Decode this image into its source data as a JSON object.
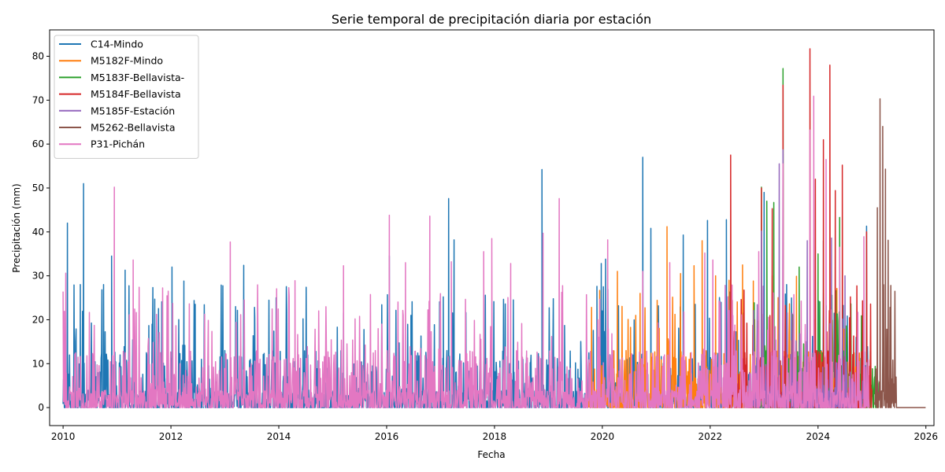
{
  "chart_data": {
    "type": "line",
    "title": "Serie temporal de precipitación diaria por estación",
    "xlabel": "Fecha",
    "ylabel": "Precipitación (mm)",
    "xlim": [
      2009.75,
      2026.15
    ],
    "ylim": [
      -4.1,
      86.0
    ],
    "xticks": [
      2010,
      2012,
      2014,
      2016,
      2018,
      2020,
      2022,
      2024,
      2026
    ],
    "yticks": [
      0,
      10,
      20,
      30,
      40,
      50,
      60,
      70,
      80
    ],
    "grid": false,
    "legend_position": "top-left",
    "series": [
      {
        "name": "C14-Mindo",
        "color": "#1f77b4",
        "range": [
          2010.0,
          2024.95
        ],
        "peaks": [
          [
            2010.08,
            42
          ],
          [
            2010.32,
            28
          ],
          [
            2010.38,
            51
          ],
          [
            2010.75,
            28
          ],
          [
            2010.9,
            34.5
          ],
          [
            2011.15,
            31.3
          ],
          [
            2011.7,
            24.7
          ],
          [
            2012.02,
            32
          ],
          [
            2012.24,
            28.8
          ],
          [
            2012.45,
            23.5
          ],
          [
            2013.2,
            23
          ],
          [
            2013.35,
            32.4
          ],
          [
            2013.55,
            22.8
          ],
          [
            2013.95,
            25
          ],
          [
            2014.45,
            20.2
          ],
          [
            2015.2,
            21.6
          ],
          [
            2016.05,
            34.5
          ],
          [
            2016.45,
            21
          ],
          [
            2017.05,
            25.2
          ],
          [
            2017.15,
            47.6
          ],
          [
            2017.25,
            38.2
          ],
          [
            2018.2,
            23.6
          ],
          [
            2018.35,
            24.5
          ],
          [
            2018.88,
            54.2
          ],
          [
            2019.3,
            18.7
          ],
          [
            2019.9,
            27.6
          ],
          [
            2019.98,
            32.8
          ],
          [
            2020.06,
            33.8
          ],
          [
            2020.3,
            23.2
          ],
          [
            2020.75,
            57
          ],
          [
            2020.9,
            40.8
          ],
          [
            2021.5,
            39.3
          ],
          [
            2021.95,
            42.6
          ],
          [
            2022.3,
            42.8
          ],
          [
            2023.0,
            49
          ],
          [
            2024.1,
            38
          ],
          [
            2024.3,
            21.5
          ],
          [
            2024.9,
            41.3
          ]
        ]
      },
      {
        "name": "M5182F-Mindo",
        "color": "#ff7f0e",
        "range": [
          2019.75,
          2024.9
        ],
        "peaks": [
          [
            2019.8,
            22.8
          ],
          [
            2019.95,
            26.7
          ],
          [
            2020.28,
            31
          ],
          [
            2020.7,
            26
          ],
          [
            2021.2,
            41.2
          ],
          [
            2021.45,
            30.5
          ],
          [
            2021.7,
            32.3
          ],
          [
            2021.85,
            38
          ],
          [
            2022.1,
            30
          ],
          [
            2022.35,
            29
          ],
          [
            2022.6,
            32.5
          ],
          [
            2022.8,
            28.8
          ],
          [
            2023.15,
            30
          ],
          [
            2023.6,
            29.9
          ],
          [
            2024.35,
            27.1
          ],
          [
            2024.6,
            17.4
          ]
        ]
      },
      {
        "name": "M5183F-Bellavista-",
        "color": "#2ca02c",
        "range": [
          2022.75,
          2025.12
        ],
        "peaks": [
          [
            2022.95,
            50.2
          ],
          [
            2023.05,
            47
          ],
          [
            2023.18,
            46.7
          ],
          [
            2023.35,
            77.2
          ],
          [
            2023.65,
            32
          ],
          [
            2024.0,
            35
          ],
          [
            2024.4,
            43.3
          ],
          [
            2025.05,
            7
          ]
        ]
      },
      {
        "name": "M5184F-Bellavista",
        "color": "#d62728",
        "range": [
          2022.35,
          2025.0
        ],
        "peaks": [
          [
            2022.38,
            57.5
          ],
          [
            2022.95,
            50
          ],
          [
            2023.15,
            45.3
          ],
          [
            2023.35,
            73.4
          ],
          [
            2023.55,
            5.4
          ],
          [
            2023.85,
            81.7
          ],
          [
            2023.95,
            52
          ],
          [
            2024.1,
            61
          ],
          [
            2024.22,
            78
          ],
          [
            2024.32,
            49.4
          ],
          [
            2024.45,
            55.2
          ],
          [
            2024.6,
            25.2
          ],
          [
            2024.9,
            40
          ]
        ]
      },
      {
        "name": "M5185F-Estación",
        "color": "#9467bd",
        "range": [
          2022.7,
          2024.85
        ],
        "peaks": [
          [
            2022.95,
            40.2
          ],
          [
            2023.28,
            55.5
          ],
          [
            2023.35,
            58.7
          ],
          [
            2023.8,
            38
          ],
          [
            2024.25,
            38.6
          ],
          [
            2024.5,
            30
          ]
        ]
      },
      {
        "name": "M5262-Bellavista",
        "color": "#8c564b",
        "range": [
          2025.05,
          2026.0
        ],
        "peaks": [
          [
            2025.1,
            45.5
          ],
          [
            2025.15,
            70.3
          ],
          [
            2025.2,
            64
          ],
          [
            2025.25,
            54.3
          ],
          [
            2025.3,
            38.1
          ],
          [
            2025.35,
            27.8
          ]
        ]
      },
      {
        "name": "P31-Pichán",
        "color": "#e377c2",
        "range": [
          2010.0,
          2024.95
        ],
        "peaks": [
          [
            2010.05,
            30.6
          ],
          [
            2010.95,
            50.2
          ],
          [
            2011.3,
            33.6
          ],
          [
            2013.1,
            37.7
          ],
          [
            2014.3,
            28.9
          ],
          [
            2015.2,
            32.3
          ],
          [
            2016.05,
            43.8
          ],
          [
            2016.35,
            33
          ],
          [
            2016.8,
            43.6
          ],
          [
            2017.2,
            33.2
          ],
          [
            2017.8,
            35.5
          ],
          [
            2017.95,
            38.5
          ],
          [
            2018.3,
            32.8
          ],
          [
            2018.9,
            39.7
          ],
          [
            2019.2,
            47.6
          ],
          [
            2020.1,
            38.2
          ],
          [
            2020.75,
            31
          ],
          [
            2021.25,
            33
          ],
          [
            2021.9,
            35.2
          ],
          [
            2022.05,
            33.6
          ],
          [
            2022.9,
            35.5
          ],
          [
            2023.35,
            55.5
          ],
          [
            2023.85,
            63.2
          ],
          [
            2023.92,
            70.9
          ],
          [
            2024.15,
            56.5
          ],
          [
            2024.4,
            36.5
          ],
          [
            2024.85,
            38.9
          ]
        ]
      }
    ]
  }
}
